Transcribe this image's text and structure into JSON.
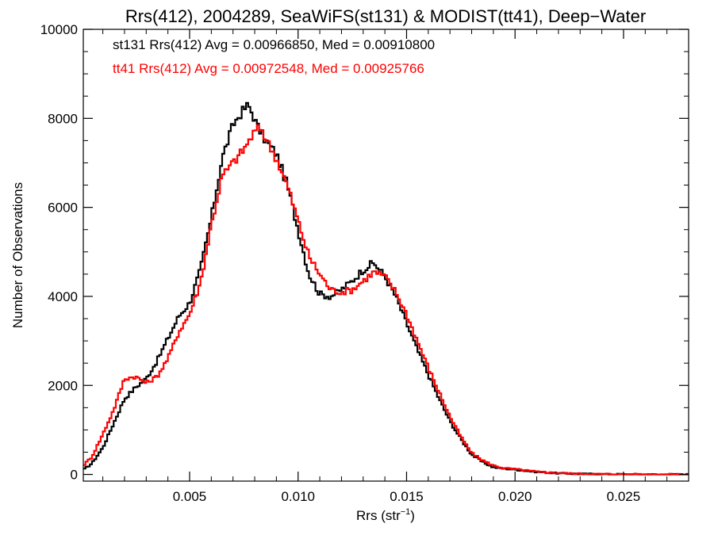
{
  "chart_data": {
    "type": "line",
    "title": "Rrs(412), 2004289, SeaWiFS(st131) & MODIST(tt41), Deep−Water",
    "xlabel": "Rrs (str",
    "xlabel_sup": "−1",
    "xlabel_close": ")",
    "ylabel": "Number of Observations",
    "xlim": [
      0.0001,
      0.028
    ],
    "ylim": [
      -150,
      10000
    ],
    "xticks": [
      0.005,
      0.01,
      0.015,
      0.02,
      0.025
    ],
    "xtick_labels": [
      "0.005",
      "0.010",
      "0.015",
      "0.020",
      "0.025"
    ],
    "yticks": [
      0,
      2000,
      4000,
      6000,
      8000,
      10000
    ],
    "ytick_labels": [
      "0",
      "2000",
      "4000",
      "6000",
      "8000",
      "10000"
    ],
    "grid": false,
    "annotations": [
      {
        "text": "st131 Rrs(412) Avg = 0.00966850, Med = 0.00910800",
        "color": "#000000"
      },
      {
        "text": "tt41 Rrs(412) Avg = 0.00972548, Med = 0.00925766",
        "color": "#ff0000"
      }
    ],
    "series": [
      {
        "color": "#000000",
        "x": [
          0.0001,
          0.0005,
          0.001,
          0.0015,
          0.002,
          0.0025,
          0.003,
          0.0035,
          0.004,
          0.0045,
          0.005,
          0.0055,
          0.006,
          0.0065,
          0.007,
          0.0072,
          0.0075,
          0.0077,
          0.0079,
          0.0081,
          0.0085,
          0.009,
          0.0095,
          0.01,
          0.0105,
          0.011,
          0.0115,
          0.012,
          0.0125,
          0.013,
          0.0133,
          0.0135,
          0.014,
          0.0145,
          0.015,
          0.0155,
          0.016,
          0.0165,
          0.017,
          0.0175,
          0.018,
          0.0185,
          0.019,
          0.0195,
          0.02,
          0.0205,
          0.021,
          0.0215,
          0.022,
          0.023,
          0.024,
          0.025,
          0.026,
          0.027,
          0.028
        ],
        "values": [
          100,
          250,
          600,
          1150,
          1700,
          1950,
          2150,
          2550,
          3050,
          3550,
          3850,
          4600,
          5750,
          7100,
          7850,
          8000,
          8200,
          8300,
          8100,
          7850,
          7500,
          7200,
          6500,
          5500,
          4500,
          4050,
          4000,
          4150,
          4350,
          4600,
          4700,
          4750,
          4450,
          4000,
          3400,
          2800,
          2250,
          1700,
          1200,
          800,
          450,
          280,
          160,
          130,
          110,
          80,
          60,
          40,
          25,
          12,
          6,
          3,
          1,
          0,
          0
        ]
      },
      {
        "color": "#ff0000",
        "x": [
          0.0001,
          0.0005,
          0.001,
          0.0015,
          0.002,
          0.0025,
          0.003,
          0.0035,
          0.004,
          0.0045,
          0.005,
          0.0055,
          0.006,
          0.0065,
          0.007,
          0.0075,
          0.008,
          0.0083,
          0.0085,
          0.009,
          0.0095,
          0.01,
          0.0105,
          0.011,
          0.0115,
          0.012,
          0.0125,
          0.013,
          0.0135,
          0.014,
          0.0145,
          0.015,
          0.0155,
          0.016,
          0.0165,
          0.017,
          0.0175,
          0.018,
          0.0185,
          0.019,
          0.0195,
          0.02,
          0.0205,
          0.021,
          0.0215,
          0.022,
          0.023,
          0.024,
          0.025,
          0.026,
          0.027,
          0.028
        ],
        "values": [
          200,
          400,
          900,
          1450,
          2150,
          2200,
          2050,
          2200,
          2600,
          3200,
          3600,
          4300,
          5600,
          6700,
          7000,
          7300,
          7700,
          7800,
          7550,
          7100,
          6500,
          5700,
          4900,
          4500,
          4150,
          4100,
          4150,
          4350,
          4550,
          4450,
          4100,
          3600,
          3000,
          2400,
          1850,
          1300,
          850,
          480,
          320,
          200,
          140,
          120,
          90,
          60,
          45,
          30,
          15,
          8,
          4,
          2,
          1,
          0
        ]
      }
    ]
  }
}
